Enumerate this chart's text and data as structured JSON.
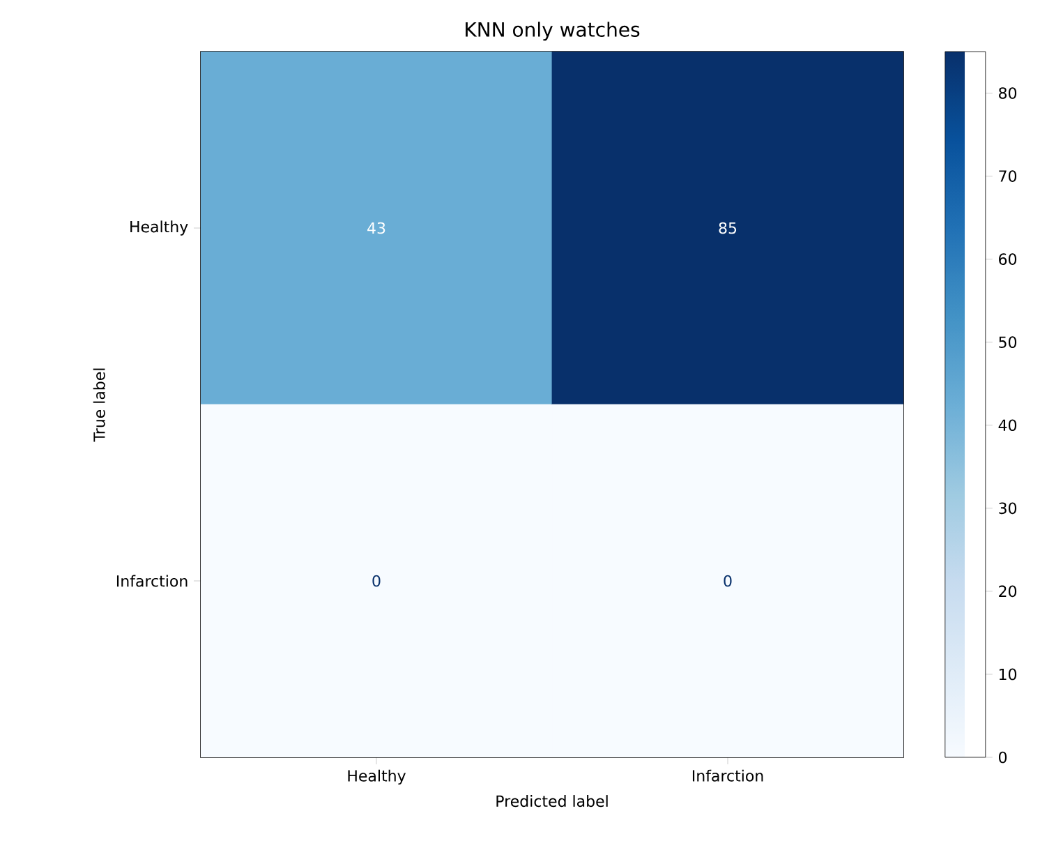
{
  "chart_data": {
    "type": "heatmap",
    "title": "KNN only watches",
    "xlabel": "Predicted label",
    "ylabel": "True label",
    "categories": [
      "Healthy",
      "Infarction"
    ],
    "y_categories": [
      "Healthy",
      "Infarction"
    ],
    "cells": [
      [
        43,
        85
      ],
      [
        0,
        0
      ]
    ],
    "clim": [
      0,
      85
    ],
    "cticks": [
      0,
      10,
      20,
      30,
      40,
      50,
      60,
      70,
      80
    ],
    "data_labels": true
  }
}
